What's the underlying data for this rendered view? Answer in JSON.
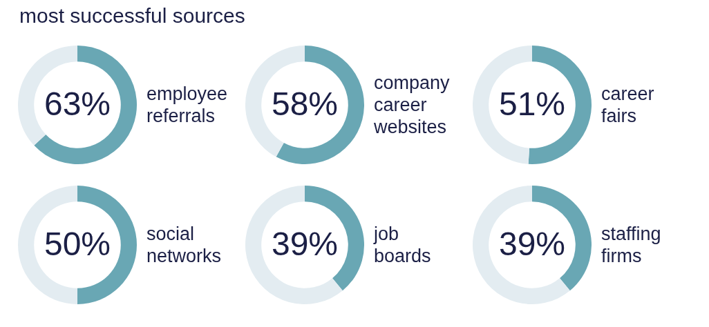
{
  "chart_data": [
    {
      "type": "other",
      "title": "most successful sources"
    },
    {
      "type": "donut",
      "categories": [
        "employee referrals",
        null
      ],
      "values": [
        63,
        37
      ],
      "colors": [
        "#69a7b4",
        "#e3ecf1"
      ],
      "value_labels": [
        "63%",
        null
      ]
    },
    {
      "type": "donut",
      "categories": [
        "company career websites",
        null
      ],
      "values": [
        58,
        42
      ],
      "colors": [
        "#69a7b4",
        "#e3ecf1"
      ],
      "value_labels": [
        "58%",
        null
      ]
    },
    {
      "type": "donut",
      "categories": [
        "career fairs",
        null
      ],
      "values": [
        51,
        49
      ],
      "colors": [
        "#69a7b4",
        "#e3ecf1"
      ],
      "value_labels": [
        "51%",
        null
      ]
    },
    {
      "type": "donut",
      "categories": [
        "social networks",
        null
      ],
      "values": [
        50,
        50
      ],
      "colors": [
        "#69a7b4",
        "#e3ecf1"
      ],
      "value_labels": [
        "50%",
        null
      ]
    },
    {
      "type": "donut",
      "categories": [
        "job boards",
        null
      ],
      "values": [
        39,
        61
      ],
      "colors": [
        "#69a7b4",
        "#e3ecf1"
      ],
      "value_labels": [
        "39%",
        null
      ]
    },
    {
      "type": "donut",
      "categories": [
        "staffing firms",
        null
      ],
      "values": [
        39,
        61
      ],
      "colors": [
        "#69a7b4",
        "#e3ecf1"
      ],
      "value_labels": [
        "39%",
        null
      ]
    }
  ]
}
